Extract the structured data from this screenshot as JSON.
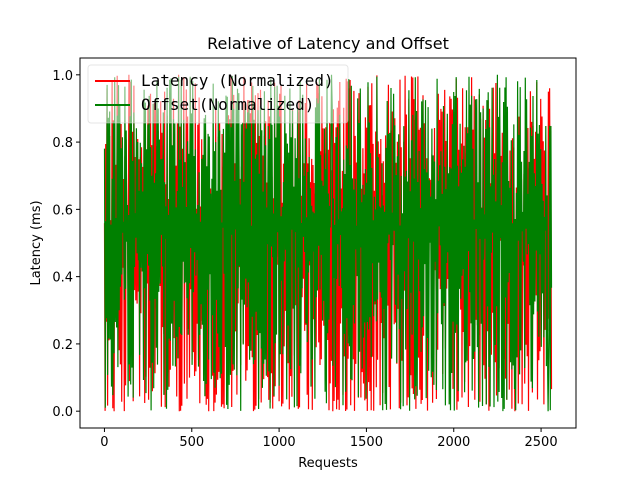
{
  "chart_data": {
    "type": "line",
    "title": "Relative of Latency and Offset",
    "xlabel": "Requests",
    "ylabel": "Latency (ms)",
    "xlim": [
      -140,
      2700
    ],
    "ylim": [
      -0.05,
      1.05
    ],
    "xticks": [
      0,
      500,
      1000,
      1500,
      2000,
      2500
    ],
    "yticks": [
      0.0,
      0.2,
      0.4,
      0.6,
      0.8,
      1.0
    ],
    "x_range": [
      0,
      2560
    ],
    "legend_position": "top-left",
    "grid": false,
    "series": [
      {
        "name": "Latency (Normalized)",
        "color": "#ff0000",
        "min": 0.0,
        "max": 1.0,
        "peaks": [
          {
            "x": 140,
            "y": 1.0
          },
          {
            "x": 240,
            "y": 0.57
          },
          {
            "x": 1610,
            "y": 0.82
          },
          {
            "x": 2100,
            "y": 0.5
          }
        ],
        "dips": [
          {
            "x": 55,
            "y": 0.0
          },
          {
            "x": 2350,
            "y": 0.0
          }
        ]
      },
      {
        "name": "Offset(Normalized)",
        "color": "#008000",
        "min": 0.0,
        "max": 1.0,
        "peaks": [
          {
            "x": 15,
            "y": 0.97
          },
          {
            "x": 1300,
            "y": 1.0
          },
          {
            "x": 2250,
            "y": 1.0
          }
        ],
        "dips": [
          {
            "x": 5,
            "y": 0.01
          },
          {
            "x": 2540,
            "y": 0.0
          }
        ]
      }
    ]
  }
}
